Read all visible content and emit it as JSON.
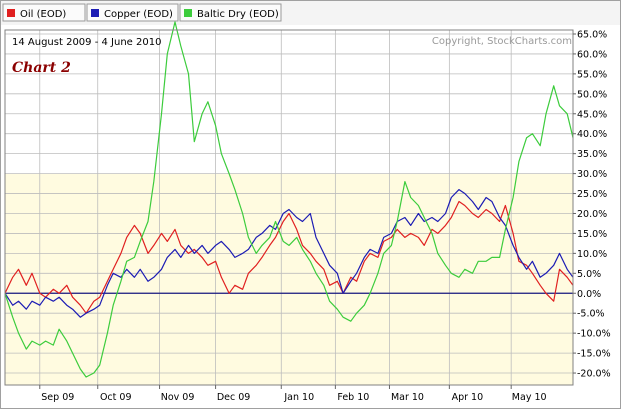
{
  "chart_data": {
    "type": "line",
    "date_range": "14 August 2009 - 4 June 2010",
    "copyright": "Copyright, StockCharts.com",
    "annotation": "Chart 2",
    "y_unit": "percent",
    "ylim": [
      -21,
      69
    ],
    "y_ticks": [
      -20,
      -15,
      -10,
      -5,
      0,
      5,
      10,
      15,
      20,
      25,
      30,
      35,
      40,
      45,
      50,
      55,
      60,
      65
    ],
    "y_tick_labels": [
      "-20.0%",
      "-15.0%",
      "-10.0%",
      "-5.0%",
      "0.0%",
      "5.0%",
      "10.0%",
      "15.0%",
      "20.0%",
      "25.0%",
      "30.0%",
      "35.0%",
      "40.0%",
      "45.0%",
      "50.0%",
      "55.0%",
      "60.0%",
      "65.0%"
    ],
    "xlim": [
      "2009-08-14",
      "2010-06-04"
    ],
    "x_ticks": [
      {
        "date": "2009-09-01",
        "label": "Sep 09"
      },
      {
        "date": "2009-10-01",
        "label": "Oct 09"
      },
      {
        "date": "2009-11-02",
        "label": "Nov 09"
      },
      {
        "date": "2009-12-01",
        "label": "Dec 09"
      },
      {
        "date": "2010-01-04",
        "label": "Jan 10"
      },
      {
        "date": "2010-02-01",
        "label": "Feb 10"
      },
      {
        "date": "2010-03-01",
        "label": "Mar 10"
      },
      {
        "date": "2010-04-01",
        "label": "Apr 10"
      },
      {
        "date": "2010-05-03",
        "label": "May 10"
      }
    ],
    "grid": true,
    "legend_position": "top-left",
    "series": [
      {
        "name": "Oil (EOD)",
        "color": "#e02020",
        "points": [
          [
            "2009-08-14",
            0
          ],
          [
            "2009-08-18",
            4
          ],
          [
            "2009-08-21",
            6
          ],
          [
            "2009-08-25",
            2
          ],
          [
            "2009-08-28",
            5
          ],
          [
            "2009-09-01",
            0
          ],
          [
            "2009-09-04",
            -1
          ],
          [
            "2009-09-08",
            1
          ],
          [
            "2009-09-11",
            0
          ],
          [
            "2009-09-15",
            2
          ],
          [
            "2009-09-18",
            -1
          ],
          [
            "2009-09-22",
            -3
          ],
          [
            "2009-09-25",
            -5
          ],
          [
            "2009-09-29",
            -2
          ],
          [
            "2009-10-02",
            -1
          ],
          [
            "2009-10-06",
            3
          ],
          [
            "2009-10-09",
            6
          ],
          [
            "2009-10-13",
            10
          ],
          [
            "2009-10-16",
            14
          ],
          [
            "2009-10-20",
            17
          ],
          [
            "2009-10-23",
            15
          ],
          [
            "2009-10-27",
            10
          ],
          [
            "2009-10-30",
            12
          ],
          [
            "2009-11-03",
            15
          ],
          [
            "2009-11-06",
            13
          ],
          [
            "2009-11-10",
            16
          ],
          [
            "2009-11-13",
            12
          ],
          [
            "2009-11-17",
            10
          ],
          [
            "2009-11-20",
            11
          ],
          [
            "2009-11-24",
            9
          ],
          [
            "2009-11-27",
            7
          ],
          [
            "2009-12-01",
            8
          ],
          [
            "2009-12-04",
            4
          ],
          [
            "2009-12-08",
            0
          ],
          [
            "2009-12-11",
            2
          ],
          [
            "2009-12-15",
            1
          ],
          [
            "2009-12-18",
            5
          ],
          [
            "2009-12-22",
            7
          ],
          [
            "2009-12-25",
            9
          ],
          [
            "2009-12-29",
            12
          ],
          [
            "2010-01-01",
            14
          ],
          [
            "2010-01-05",
            18
          ],
          [
            "2010-01-08",
            20
          ],
          [
            "2010-01-12",
            16
          ],
          [
            "2010-01-15",
            12
          ],
          [
            "2010-01-19",
            10
          ],
          [
            "2010-01-22",
            8
          ],
          [
            "2010-01-26",
            6
          ],
          [
            "2010-01-29",
            2
          ],
          [
            "2010-02-02",
            3
          ],
          [
            "2010-02-05",
            0
          ],
          [
            "2010-02-09",
            4
          ],
          [
            "2010-02-12",
            3
          ],
          [
            "2010-02-16",
            8
          ],
          [
            "2010-02-19",
            10
          ],
          [
            "2010-02-23",
            9
          ],
          [
            "2010-02-26",
            13
          ],
          [
            "2010-03-02",
            14
          ],
          [
            "2010-03-05",
            16
          ],
          [
            "2010-03-09",
            14
          ],
          [
            "2010-03-12",
            15
          ],
          [
            "2010-03-16",
            14
          ],
          [
            "2010-03-19",
            12
          ],
          [
            "2010-03-23",
            16
          ],
          [
            "2010-03-26",
            15
          ],
          [
            "2010-03-30",
            17
          ],
          [
            "2010-04-02",
            19
          ],
          [
            "2010-04-06",
            23
          ],
          [
            "2010-04-09",
            22
          ],
          [
            "2010-04-13",
            20
          ],
          [
            "2010-04-16",
            19
          ],
          [
            "2010-04-20",
            21
          ],
          [
            "2010-04-23",
            20
          ],
          [
            "2010-04-27",
            18
          ],
          [
            "2010-04-30",
            22
          ],
          [
            "2010-05-04",
            15
          ],
          [
            "2010-05-07",
            8
          ],
          [
            "2010-05-11",
            7
          ],
          [
            "2010-05-14",
            5
          ],
          [
            "2010-05-18",
            2
          ],
          [
            "2010-05-21",
            0
          ],
          [
            "2010-05-25",
            -2
          ],
          [
            "2010-05-28",
            6
          ],
          [
            "2010-06-01",
            4
          ],
          [
            "2010-06-04",
            2
          ]
        ]
      },
      {
        "name": "Copper (EOD)",
        "color": "#1c1cb4",
        "points": [
          [
            "2009-08-14",
            0
          ],
          [
            "2009-08-18",
            -3
          ],
          [
            "2009-08-21",
            -2
          ],
          [
            "2009-08-25",
            -4
          ],
          [
            "2009-08-28",
            -2
          ],
          [
            "2009-09-01",
            -3
          ],
          [
            "2009-09-04",
            -1
          ],
          [
            "2009-09-08",
            -2
          ],
          [
            "2009-09-11",
            -1
          ],
          [
            "2009-09-15",
            -3
          ],
          [
            "2009-09-18",
            -4
          ],
          [
            "2009-09-22",
            -6
          ],
          [
            "2009-09-25",
            -5
          ],
          [
            "2009-09-29",
            -4
          ],
          [
            "2009-10-02",
            -3
          ],
          [
            "2009-10-06",
            2
          ],
          [
            "2009-10-09",
            5
          ],
          [
            "2009-10-13",
            4
          ],
          [
            "2009-10-16",
            6
          ],
          [
            "2009-10-20",
            4
          ],
          [
            "2009-10-23",
            6
          ],
          [
            "2009-10-27",
            3
          ],
          [
            "2009-10-30",
            4
          ],
          [
            "2009-11-03",
            6
          ],
          [
            "2009-11-06",
            9
          ],
          [
            "2009-11-10",
            11
          ],
          [
            "2009-11-13",
            9
          ],
          [
            "2009-11-17",
            12
          ],
          [
            "2009-11-20",
            10
          ],
          [
            "2009-11-24",
            12
          ],
          [
            "2009-11-27",
            10
          ],
          [
            "2009-12-01",
            12
          ],
          [
            "2009-12-04",
            13
          ],
          [
            "2009-12-08",
            11
          ],
          [
            "2009-12-11",
            9
          ],
          [
            "2009-12-15",
            10
          ],
          [
            "2009-12-18",
            11
          ],
          [
            "2009-12-22",
            14
          ],
          [
            "2009-12-25",
            15
          ],
          [
            "2009-12-29",
            17
          ],
          [
            "2010-01-01",
            16
          ],
          [
            "2010-01-05",
            20
          ],
          [
            "2010-01-08",
            21
          ],
          [
            "2010-01-12",
            19
          ],
          [
            "2010-01-15",
            18
          ],
          [
            "2010-01-19",
            20
          ],
          [
            "2010-01-22",
            14
          ],
          [
            "2010-01-26",
            10
          ],
          [
            "2010-01-29",
            7
          ],
          [
            "2010-02-02",
            5
          ],
          [
            "2010-02-05",
            0
          ],
          [
            "2010-02-09",
            3
          ],
          [
            "2010-02-12",
            5
          ],
          [
            "2010-02-16",
            9
          ],
          [
            "2010-02-19",
            11
          ],
          [
            "2010-02-23",
            10
          ],
          [
            "2010-02-26",
            14
          ],
          [
            "2010-03-02",
            15
          ],
          [
            "2010-03-05",
            18
          ],
          [
            "2010-03-09",
            19
          ],
          [
            "2010-03-12",
            17
          ],
          [
            "2010-03-16",
            20
          ],
          [
            "2010-03-19",
            18
          ],
          [
            "2010-03-23",
            19
          ],
          [
            "2010-03-26",
            18
          ],
          [
            "2010-03-30",
            20
          ],
          [
            "2010-04-02",
            24
          ],
          [
            "2010-04-06",
            26
          ],
          [
            "2010-04-09",
            25
          ],
          [
            "2010-04-13",
            23
          ],
          [
            "2010-04-16",
            21
          ],
          [
            "2010-04-20",
            24
          ],
          [
            "2010-04-23",
            23
          ],
          [
            "2010-04-27",
            19
          ],
          [
            "2010-04-30",
            17
          ],
          [
            "2010-05-04",
            12
          ],
          [
            "2010-05-07",
            9
          ],
          [
            "2010-05-11",
            6
          ],
          [
            "2010-05-14",
            8
          ],
          [
            "2010-05-18",
            4
          ],
          [
            "2010-05-21",
            5
          ],
          [
            "2010-05-25",
            7
          ],
          [
            "2010-05-28",
            10
          ],
          [
            "2010-06-01",
            6
          ],
          [
            "2010-06-04",
            4
          ]
        ]
      },
      {
        "name": "Baltic Dry (EOD)",
        "color": "#3ccc3c",
        "points": [
          [
            "2009-08-14",
            0
          ],
          [
            "2009-08-18",
            -6
          ],
          [
            "2009-08-21",
            -10
          ],
          [
            "2009-08-25",
            -14
          ],
          [
            "2009-08-28",
            -12
          ],
          [
            "2009-09-01",
            -13
          ],
          [
            "2009-09-04",
            -12
          ],
          [
            "2009-09-08",
            -13
          ],
          [
            "2009-09-11",
            -9
          ],
          [
            "2009-09-15",
            -12
          ],
          [
            "2009-09-18",
            -15
          ],
          [
            "2009-09-22",
            -19
          ],
          [
            "2009-09-25",
            -21
          ],
          [
            "2009-09-29",
            -20
          ],
          [
            "2009-10-02",
            -18
          ],
          [
            "2009-10-06",
            -10
          ],
          [
            "2009-10-09",
            -3
          ],
          [
            "2009-10-13",
            3
          ],
          [
            "2009-10-16",
            8
          ],
          [
            "2009-10-20",
            9
          ],
          [
            "2009-10-23",
            13
          ],
          [
            "2009-10-27",
            18
          ],
          [
            "2009-10-30",
            28
          ],
          [
            "2009-11-03",
            45
          ],
          [
            "2009-11-06",
            60
          ],
          [
            "2009-11-10",
            68
          ],
          [
            "2009-11-13",
            62
          ],
          [
            "2009-11-17",
            55
          ],
          [
            "2009-11-20",
            38
          ],
          [
            "2009-11-24",
            45
          ],
          [
            "2009-11-27",
            48
          ],
          [
            "2009-12-01",
            42
          ],
          [
            "2009-12-04",
            35
          ],
          [
            "2009-12-08",
            30
          ],
          [
            "2009-12-11",
            26
          ],
          [
            "2009-12-15",
            20
          ],
          [
            "2009-12-18",
            14
          ],
          [
            "2009-12-22",
            10
          ],
          [
            "2009-12-25",
            12
          ],
          [
            "2009-12-29",
            14
          ],
          [
            "2010-01-01",
            18
          ],
          [
            "2010-01-05",
            13
          ],
          [
            "2010-01-08",
            12
          ],
          [
            "2010-01-12",
            14
          ],
          [
            "2010-01-15",
            11
          ],
          [
            "2010-01-19",
            8
          ],
          [
            "2010-01-22",
            5
          ],
          [
            "2010-01-26",
            2
          ],
          [
            "2010-01-29",
            -2
          ],
          [
            "2010-02-02",
            -4
          ],
          [
            "2010-02-05",
            -6
          ],
          [
            "2010-02-09",
            -7
          ],
          [
            "2010-02-12",
            -5
          ],
          [
            "2010-02-16",
            -3
          ],
          [
            "2010-02-19",
            0
          ],
          [
            "2010-02-23",
            5
          ],
          [
            "2010-02-26",
            10
          ],
          [
            "2010-03-02",
            12
          ],
          [
            "2010-03-05",
            18
          ],
          [
            "2010-03-09",
            28
          ],
          [
            "2010-03-12",
            24
          ],
          [
            "2010-03-16",
            22
          ],
          [
            "2010-03-19",
            19
          ],
          [
            "2010-03-23",
            15
          ],
          [
            "2010-03-26",
            10
          ],
          [
            "2010-03-30",
            7
          ],
          [
            "2010-04-02",
            5
          ],
          [
            "2010-04-06",
            4
          ],
          [
            "2010-04-09",
            6
          ],
          [
            "2010-04-13",
            5
          ],
          [
            "2010-04-16",
            8
          ],
          [
            "2010-04-20",
            8
          ],
          [
            "2010-04-23",
            9
          ],
          [
            "2010-04-27",
            9
          ],
          [
            "2010-04-30",
            16
          ],
          [
            "2010-05-04",
            24
          ],
          [
            "2010-05-07",
            33
          ],
          [
            "2010-05-11",
            39
          ],
          [
            "2010-05-14",
            40
          ],
          [
            "2010-05-18",
            37
          ],
          [
            "2010-05-21",
            45
          ],
          [
            "2010-05-25",
            52
          ],
          [
            "2010-05-28",
            47
          ],
          [
            "2010-06-01",
            45
          ],
          [
            "2010-06-04",
            39
          ]
        ]
      }
    ]
  }
}
